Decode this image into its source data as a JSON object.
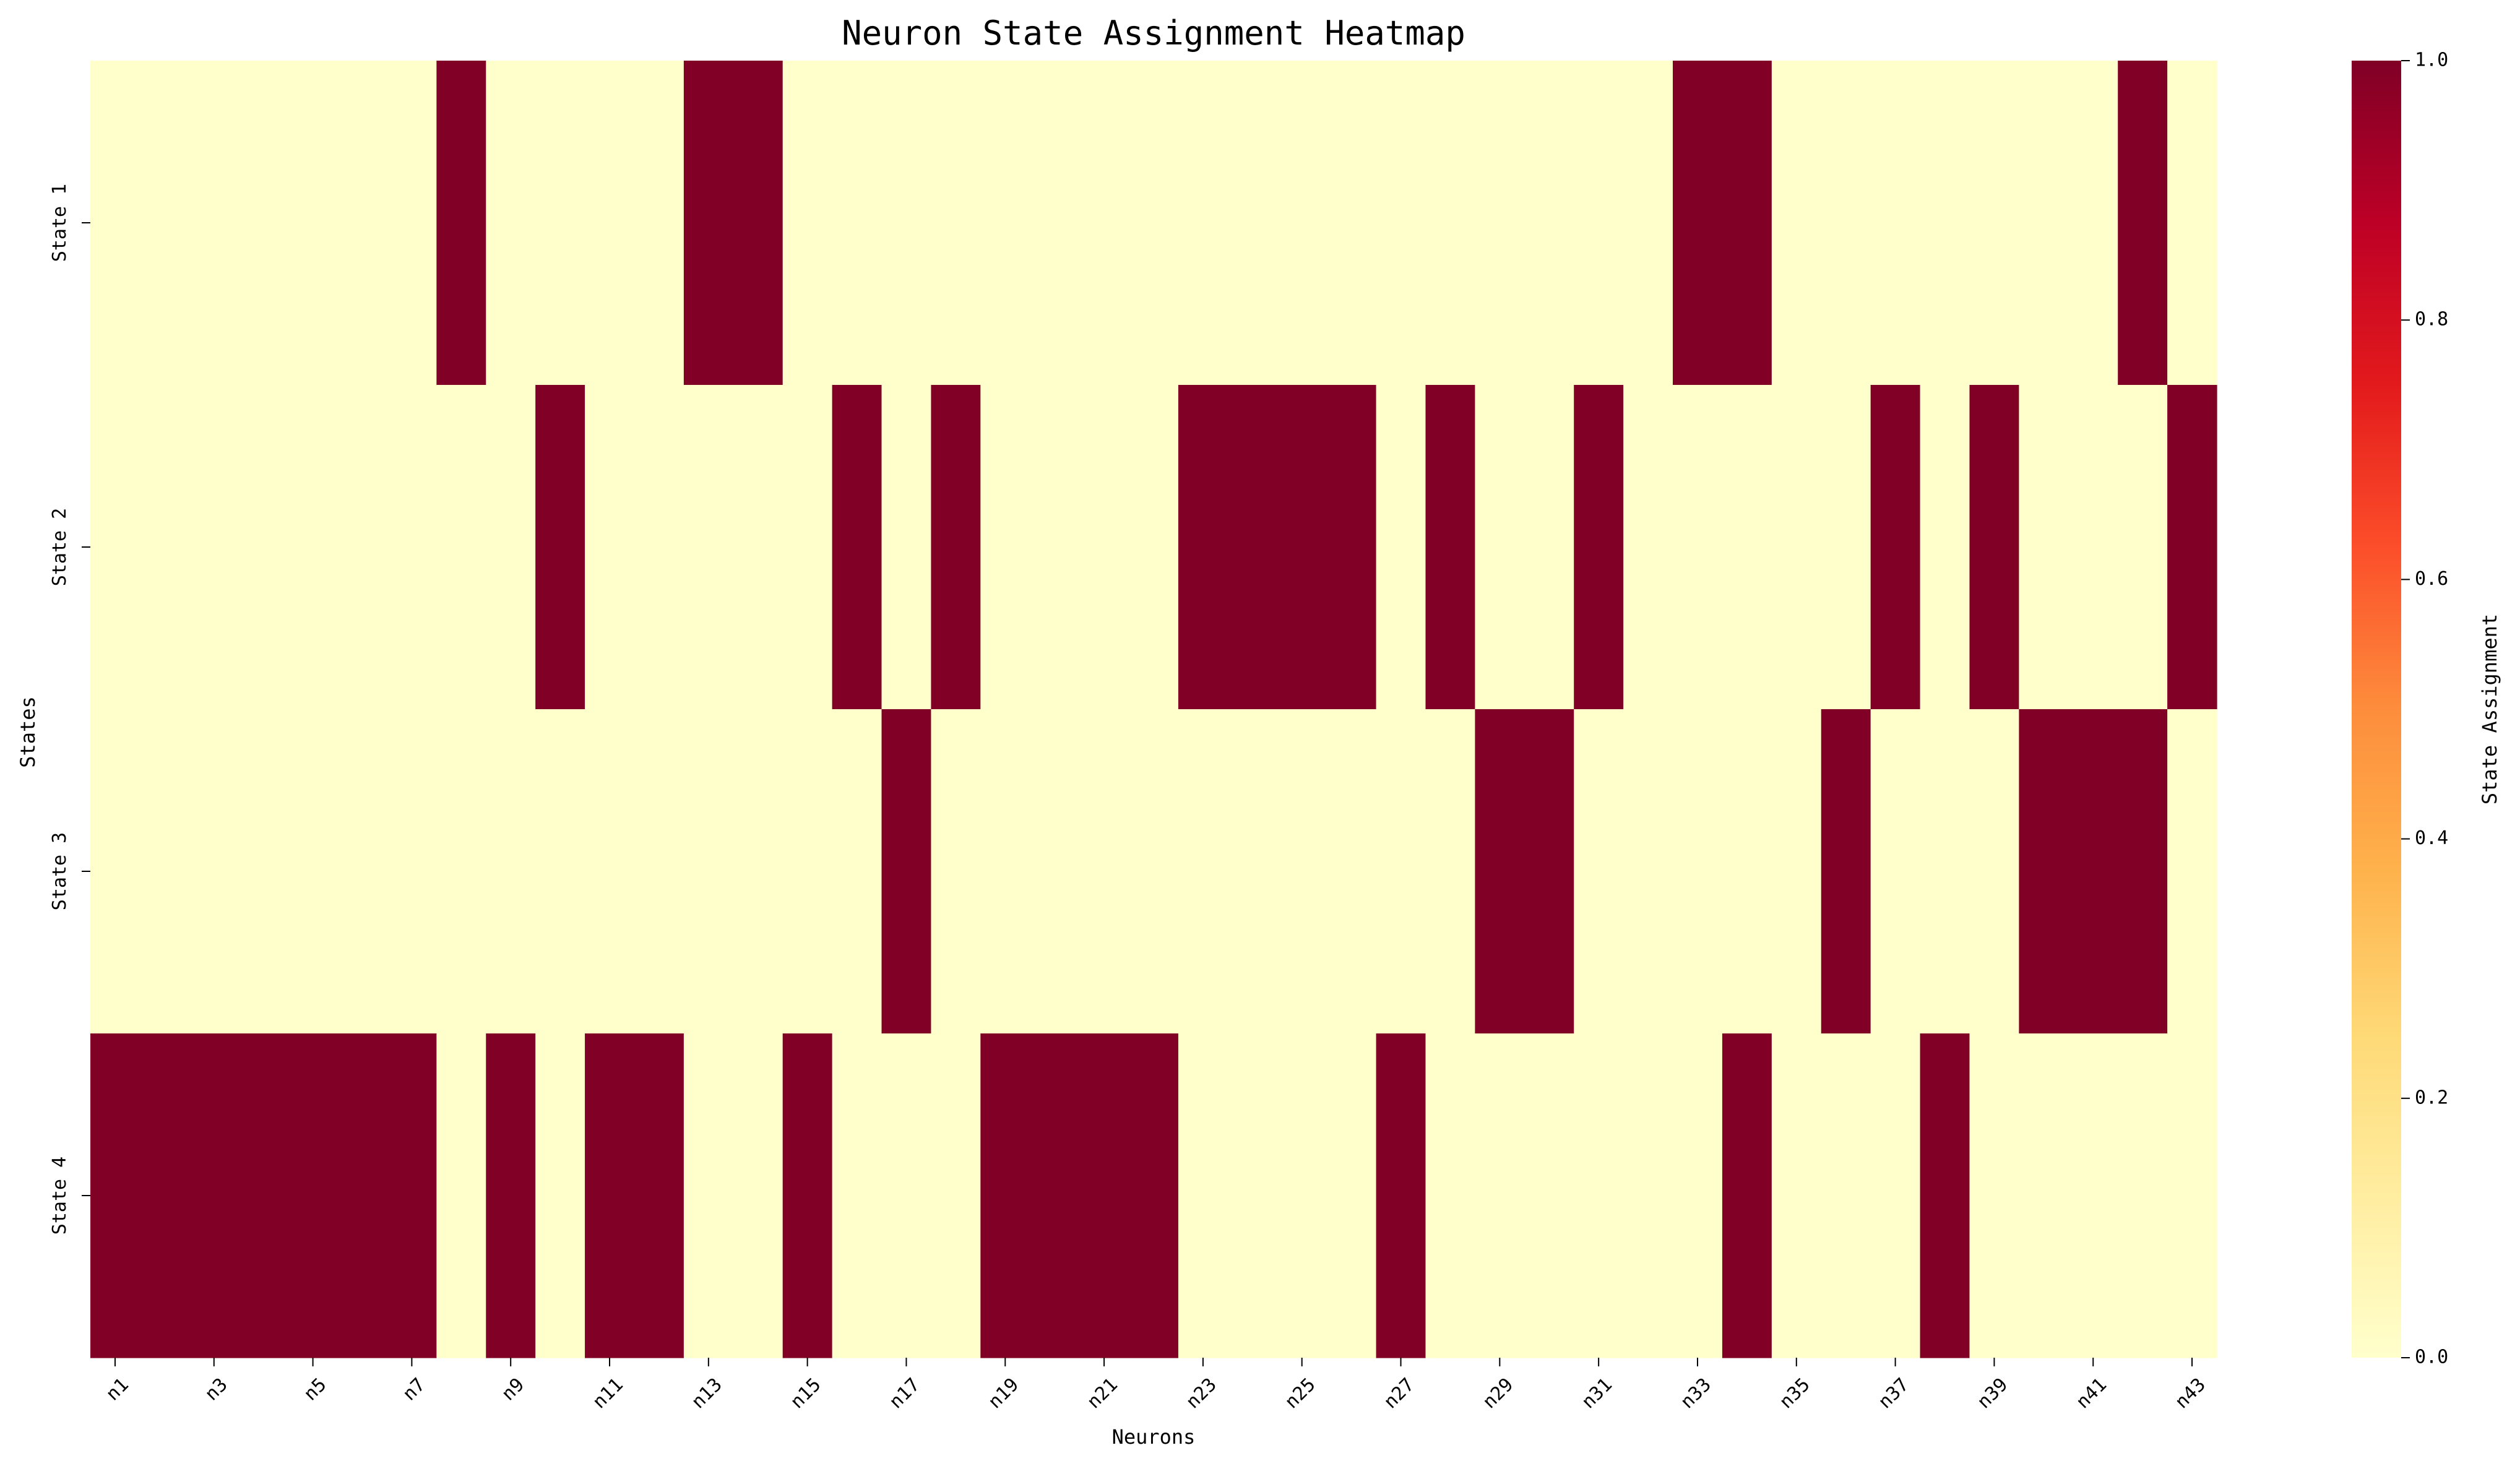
{
  "chart_data": {
    "type": "heatmap",
    "title": "Neuron State Assignment Heatmap",
    "xlabel": "Neurons",
    "ylabel": "States",
    "rows": [
      "State 1",
      "State 2",
      "State 3",
      "State 4"
    ],
    "x_tick_labels": [
      "n1",
      "n3",
      "n5",
      "n7",
      "n9",
      "n11",
      "n13",
      "n15",
      "n17",
      "n19",
      "n21",
      "n23",
      "n25",
      "n27",
      "n29",
      "n31",
      "n33",
      "n35",
      "n37",
      "n39",
      "n41",
      "n43"
    ],
    "column_count": 43,
    "values": [
      [
        0,
        0,
        0,
        0,
        0,
        0,
        0,
        1,
        0,
        0,
        0,
        0,
        1,
        1,
        0,
        0,
        0,
        0,
        0,
        0,
        0,
        0,
        0,
        0,
        0,
        0,
        0,
        0,
        0,
        0,
        0,
        0,
        1,
        1,
        0,
        0,
        0,
        0,
        0,
        0,
        0,
        1,
        0
      ],
      [
        0,
        0,
        0,
        0,
        0,
        0,
        0,
        0,
        0,
        1,
        0,
        0,
        0,
        0,
        0,
        1,
        0,
        1,
        0,
        0,
        0,
        0,
        1,
        1,
        1,
        1,
        0,
        1,
        0,
        0,
        1,
        0,
        0,
        0,
        0,
        0,
        1,
        0,
        1,
        0,
        0,
        0,
        1
      ],
      [
        0,
        0,
        0,
        0,
        0,
        0,
        0,
        0,
        0,
        0,
        0,
        0,
        0,
        0,
        0,
        0,
        1,
        0,
        0,
        0,
        0,
        0,
        0,
        0,
        0,
        0,
        0,
        0,
        1,
        1,
        0,
        0,
        0,
        0,
        0,
        1,
        0,
        0,
        0,
        1,
        1,
        1,
        0
      ],
      [
        1,
        1,
        1,
        1,
        1,
        1,
        1,
        0,
        1,
        0,
        1,
        1,
        0,
        0,
        1,
        0,
        0,
        0,
        1,
        1,
        1,
        1,
        0,
        0,
        0,
        0,
        1,
        0,
        0,
        0,
        0,
        0,
        0,
        1,
        0,
        0,
        0,
        1,
        0,
        0,
        0,
        0,
        0
      ]
    ],
    "vmin": 0,
    "vmax": 1,
    "colormap": "YlOrRd",
    "colorbar": {
      "label": "State Assignment",
      "ticks": [
        "0.0",
        "0.2",
        "0.4",
        "0.6",
        "0.8",
        "1.0"
      ],
      "colors": [
        "#ffffcc",
        "#ffeda0",
        "#fed976",
        "#feb24c",
        "#fd8d3c",
        "#fc4e2a",
        "#e31a1c",
        "#bd0026",
        "#800026"
      ]
    }
  }
}
